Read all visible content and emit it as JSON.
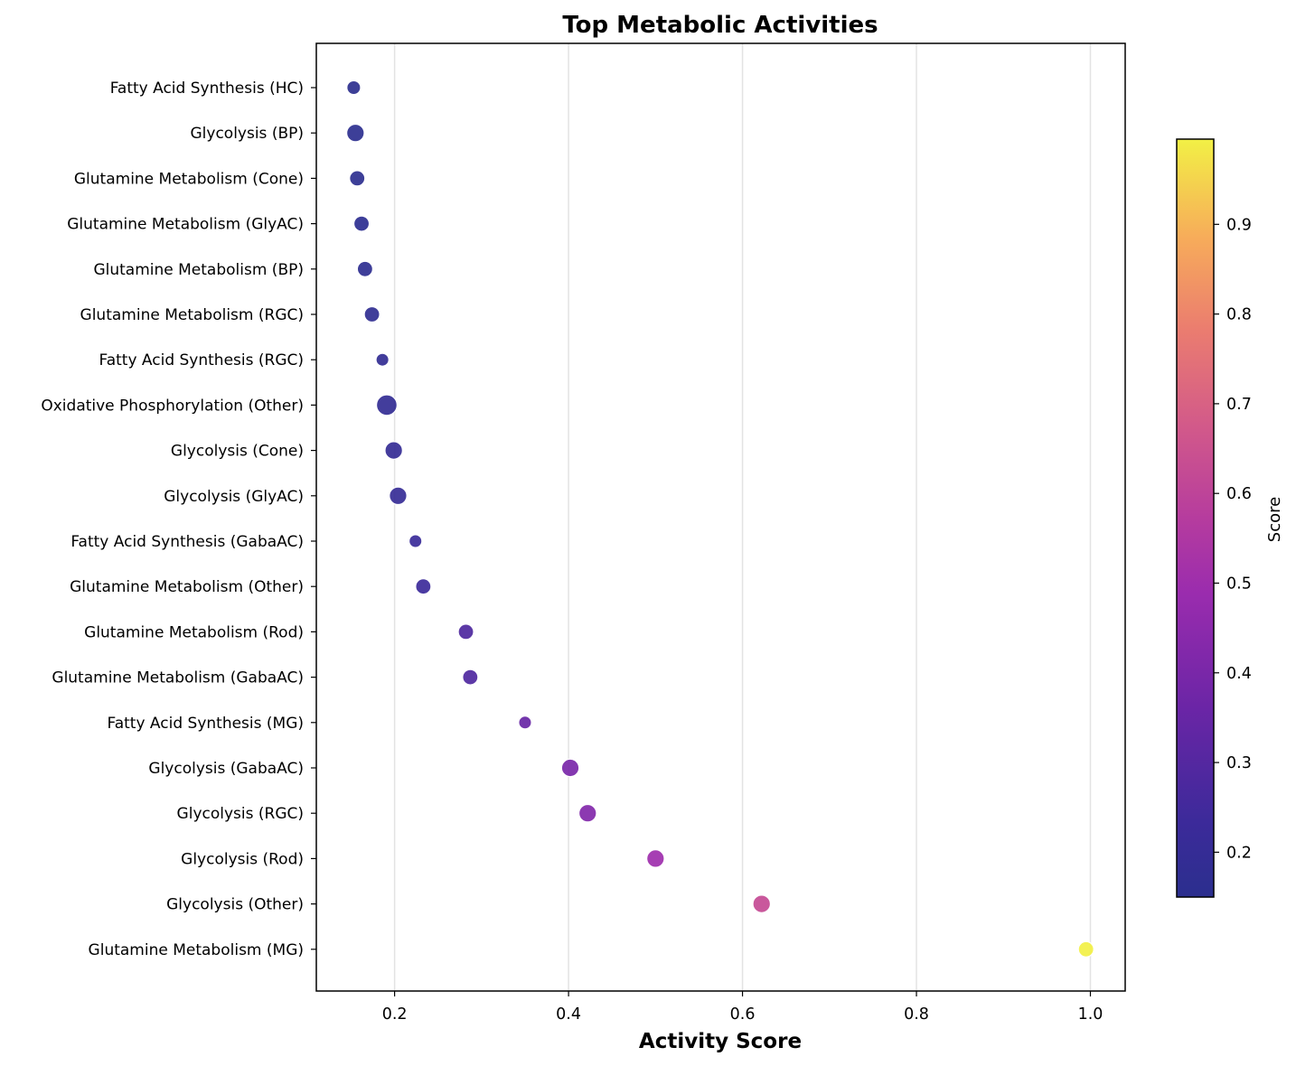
{
  "chart_data": {
    "type": "scatter",
    "title": "Top Metabolic Activities",
    "xlabel": "Activity Score",
    "ylabel": "",
    "xlim": [
      0.11,
      1.04
    ],
    "xticks": [
      0.2,
      0.4,
      0.6,
      0.8,
      1.0
    ],
    "xtick_labels": [
      "0.2",
      "0.4",
      "0.6",
      "0.8",
      "1.0"
    ],
    "grid": "vertical gridlines on",
    "colormap": "plasma",
    "colorbar": {
      "label": "Score",
      "range": [
        0.15,
        0.995
      ],
      "ticks": [
        0.2,
        0.3,
        0.4,
        0.5,
        0.6,
        0.7,
        0.8,
        0.9
      ],
      "tick_labels": [
        "0.2",
        "0.3",
        "0.4",
        "0.5",
        "0.6",
        "0.7",
        "0.8",
        "0.9"
      ]
    },
    "categories": [
      "Fatty Acid Synthesis (HC)",
      "Glycolysis (BP)",
      "Glutamine Metabolism (Cone)",
      "Glutamine Metabolism (GlyAC)",
      "Glutamine Metabolism (BP)",
      "Glutamine Metabolism (RGC)",
      "Fatty Acid Synthesis (RGC)",
      "Oxidative Phosphorylation (Other)",
      "Glycolysis (Cone)",
      "Glycolysis (GlyAC)",
      "Fatty Acid Synthesis (GabaAC)",
      "Glutamine Metabolism (Other)",
      "Glutamine Metabolism (Rod)",
      "Glutamine Metabolism (GabaAC)",
      "Fatty Acid Synthesis (MG)",
      "Glycolysis (GabaAC)",
      "Glycolysis (RGC)",
      "Glycolysis (Rod)",
      "Glycolysis (Other)",
      "Glutamine Metabolism (MG)"
    ],
    "values": [
      0.153,
      0.155,
      0.157,
      0.162,
      0.166,
      0.174,
      0.186,
      0.191,
      0.199,
      0.204,
      0.224,
      0.233,
      0.282,
      0.287,
      0.35,
      0.402,
      0.422,
      0.5,
      0.622,
      0.995
    ],
    "marker_size_rel": [
      0.8,
      1.3,
      1.0,
      1.0,
      1.0,
      1.0,
      0.7,
      1.8,
      1.3,
      1.3,
      0.7,
      1.0,
      1.0,
      1.0,
      0.7,
      1.3,
      1.3,
      1.3,
      1.3,
      1.0
    ]
  }
}
